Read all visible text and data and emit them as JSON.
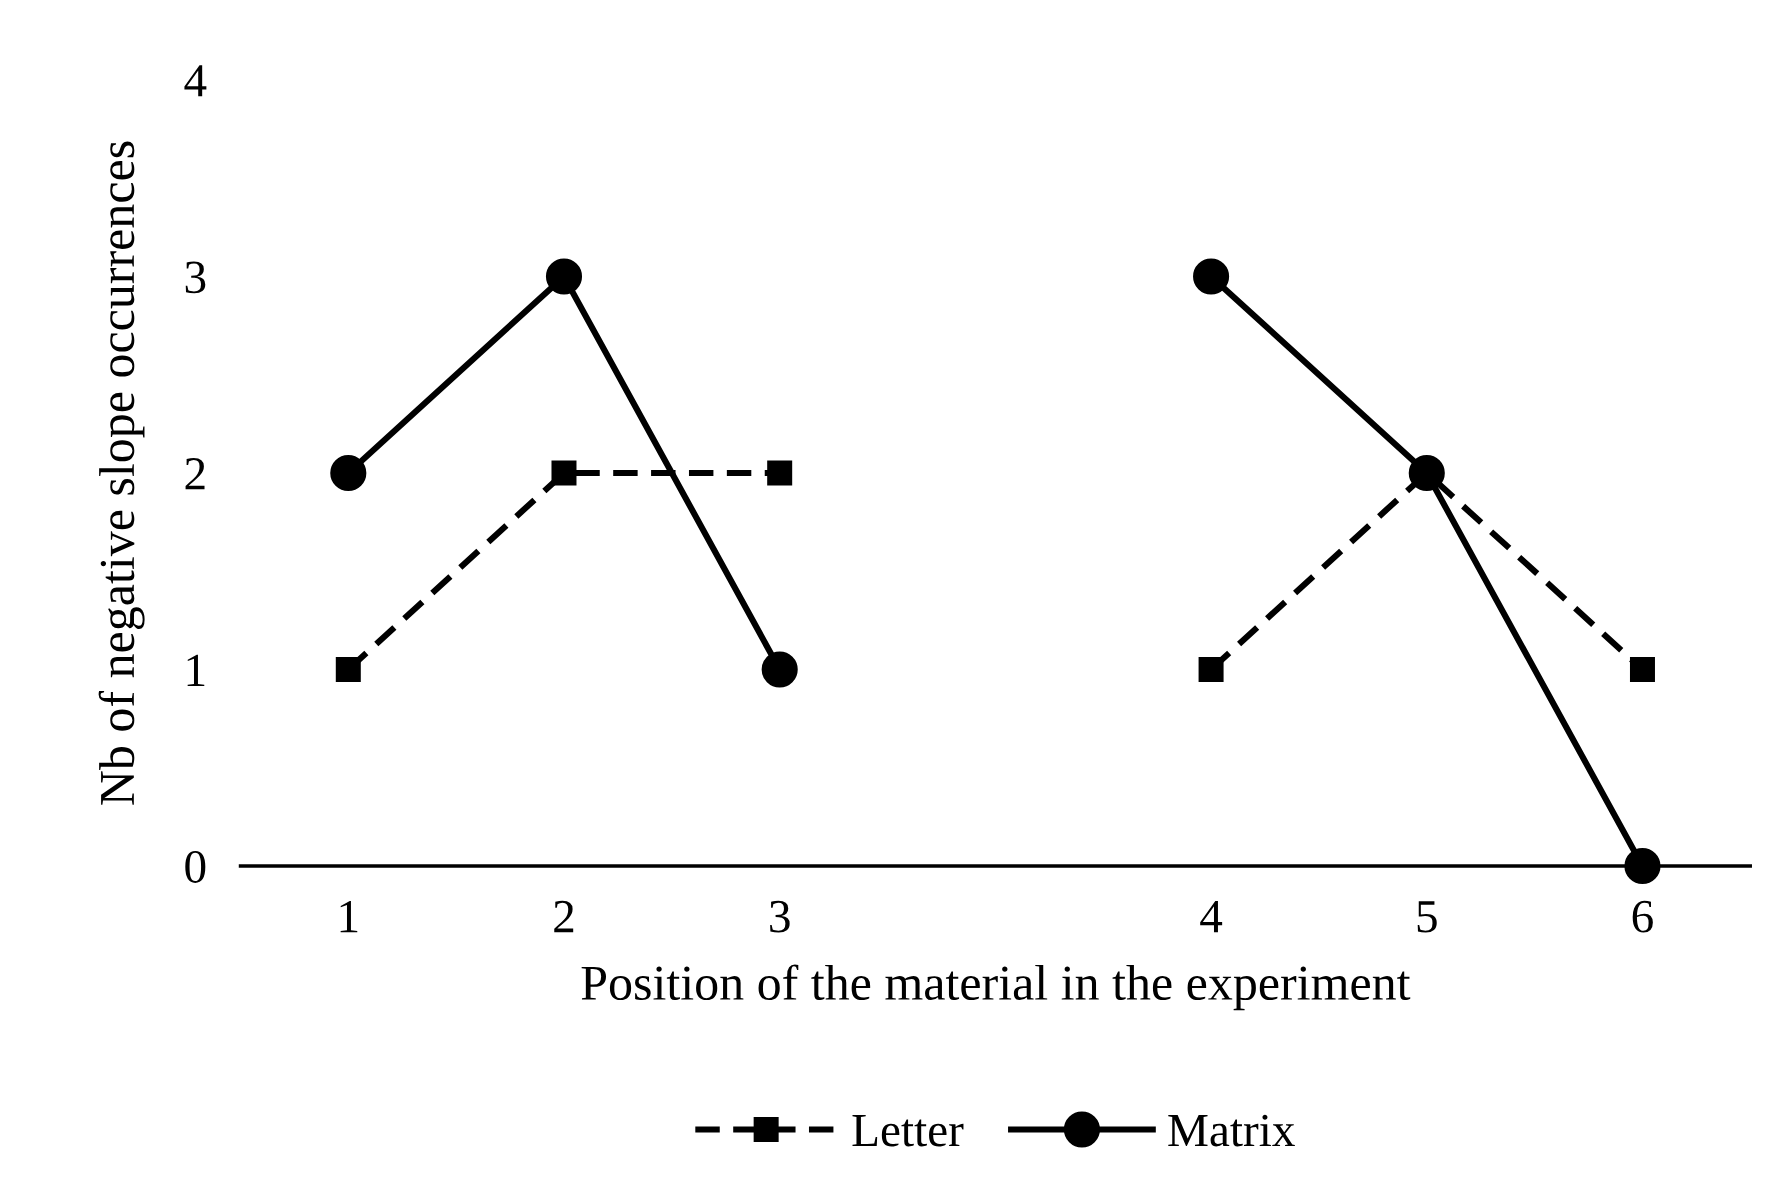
{
  "chart_data": {
    "type": "line",
    "xlabel": "Position of the material in the experiment",
    "ylabel": "Nb of negative slope occurrences",
    "categories": [
      "1",
      "2",
      "3",
      null,
      "4",
      "5",
      "6"
    ],
    "series": [
      {
        "name": "Letter",
        "color": "#000000",
        "marker": "square",
        "line_style": "dashed",
        "values": [
          1,
          2,
          2,
          null,
          1,
          2,
          1
        ]
      },
      {
        "name": "Matrix",
        "color": "#000000",
        "marker": "circle",
        "line_style": "solid",
        "values": [
          2,
          3,
          1,
          null,
          3,
          2,
          0
        ]
      }
    ],
    "ylim": [
      0,
      4
    ],
    "yticks": [
      0,
      1,
      2,
      3,
      4
    ],
    "grid": false,
    "legend": "bottom"
  }
}
